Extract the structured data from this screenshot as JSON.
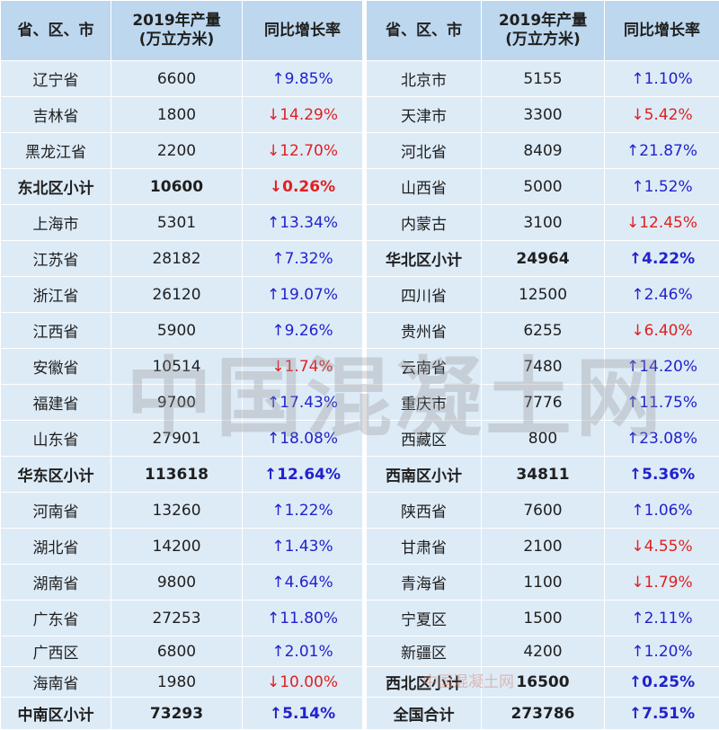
{
  "headers": {
    "region": "省、区、市",
    "output_line1": "2019年产量",
    "output_line2": "(万立方米)",
    "growth": "同比增长率"
  },
  "rows": [
    {
      "l": [
        "辽宁省",
        "6600",
        "↑9.85%"
      ],
      "r": [
        "北京市",
        "5155",
        "↑1.10%"
      ]
    },
    {
      "l": [
        "吉林省",
        "1800",
        "↓14.29%"
      ],
      "r": [
        "天津市",
        "3300",
        "↓5.42%"
      ]
    },
    {
      "l": [
        "黑龙江省",
        "2200",
        "↓12.70%"
      ],
      "r": [
        "河北省",
        "8409",
        "↑21.87%"
      ]
    },
    {
      "l": [
        "东北区小计",
        "10600",
        "↓0.26%"
      ],
      "r": [
        "山西省",
        "5000",
        "↑1.52%"
      ]
    },
    {
      "l": [
        "上海市",
        "5301",
        "↑13.34%"
      ],
      "r": [
        "内蒙古",
        "3100",
        "↓12.45%"
      ]
    },
    {
      "l": [
        "江苏省",
        "28182",
        "↑7.32%"
      ],
      "r": [
        "华北区小计",
        "24964",
        "↑4.22%"
      ]
    },
    {
      "l": [
        "浙江省",
        "26120",
        "↑19.07%"
      ],
      "r": [
        "四川省",
        "12500",
        "↑2.46%"
      ]
    },
    {
      "l": [
        "江西省",
        "5900",
        "↑9.26%"
      ],
      "r": [
        "贵州省",
        "6255",
        "↓6.40%"
      ]
    },
    {
      "l": [
        "安徽省",
        "10514",
        "↓1.74%"
      ],
      "r": [
        "云南省",
        "7480",
        "↑14.20%"
      ]
    },
    {
      "l": [
        "福建省",
        "9700",
        "↑17.43%"
      ],
      "r": [
        "重庆市",
        "7776",
        "↑11.75%"
      ]
    },
    {
      "l": [
        "山东省",
        "27901",
        "↑18.08%"
      ],
      "r": [
        "西藏区",
        "800",
        "↑23.08%"
      ]
    },
    {
      "l": [
        "华东区小计",
        "113618",
        "↑12.64%"
      ],
      "r": [
        "西南区小计",
        "34811",
        "↑5.36%"
      ]
    },
    {
      "l": [
        "河南省",
        "13260",
        "↑1.22%"
      ],
      "r": [
        "陕西省",
        "7600",
        "↑1.06%"
      ]
    },
    {
      "l": [
        "湖北省",
        "14200",
        "↑1.43%"
      ],
      "r": [
        "甘肃省",
        "2100",
        "↓4.55%"
      ]
    },
    {
      "l": [
        "湖南省",
        "9800",
        "↑4.64%"
      ],
      "r": [
        "青海省",
        "1100",
        "↓1.79%"
      ]
    },
    {
      "l": [
        "广东省",
        "27253",
        "↑11.80%"
      ],
      "r": [
        "宁夏区",
        "1500",
        "↑2.11%"
      ]
    },
    {
      "l": [
        "广西区",
        "6800",
        "↑2.01%"
      ],
      "r": [
        "新疆区",
        "4200",
        "↑1.20%"
      ]
    },
    {
      "l": [
        "海南省",
        "1980",
        "↓10.00%"
      ],
      "r": [
        "西北区小计",
        "16500",
        "↑0.25%"
      ]
    },
    {
      "l": [
        "中南区小计",
        "73293",
        "↑5.14%"
      ],
      "r": [
        "全国合计",
        "273786",
        "↑7.51%"
      ]
    }
  ],
  "watermark": "中国混凝土网",
  "watermark_small": "中国混凝土网"
}
